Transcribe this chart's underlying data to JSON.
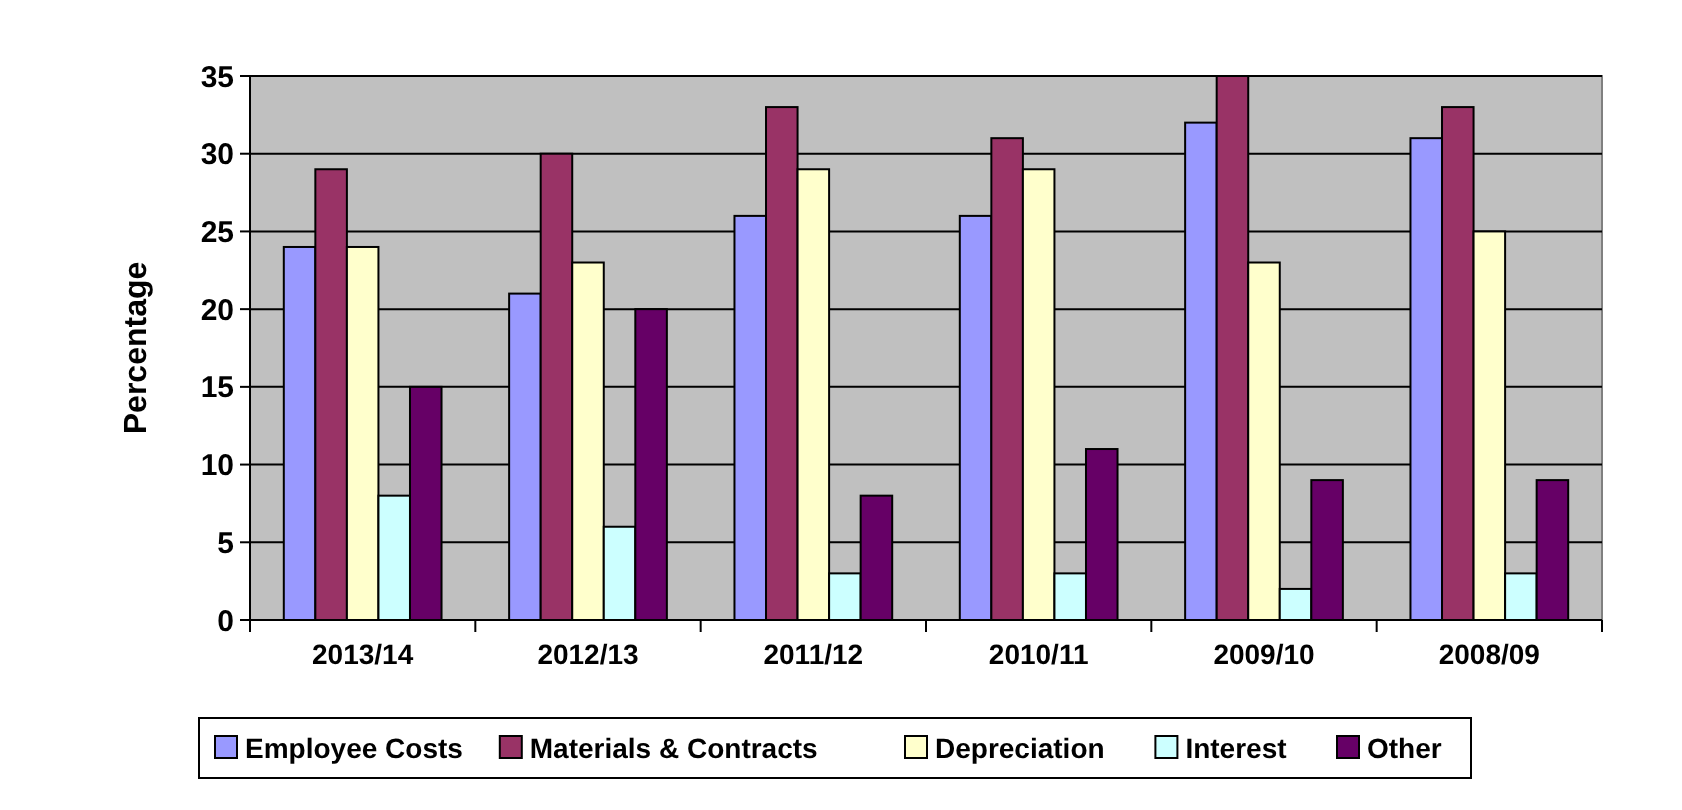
{
  "chart_data": {
    "type": "bar",
    "ylabel": "Percentage",
    "categories": [
      "2013/14",
      "2012/13",
      "2011/12",
      "2010/11",
      "2009/10",
      "2008/09"
    ],
    "series": [
      {
        "name": "Employee Costs",
        "color": "#9999ff",
        "values": [
          24,
          21,
          26,
          26,
          32,
          31
        ]
      },
      {
        "name": "Materials & Contracts",
        "color": "#993366",
        "values": [
          29,
          30,
          33,
          31,
          35,
          33
        ]
      },
      {
        "name": "Depreciation",
        "color": "#ffffcc",
        "values": [
          24,
          23,
          29,
          29,
          23,
          25
        ]
      },
      {
        "name": "Interest",
        "color": "#ccffff",
        "values": [
          8,
          6,
          3,
          3,
          2,
          3
        ]
      },
      {
        "name": "Other",
        "color": "#660066",
        "values": [
          15,
          20,
          8,
          11,
          9,
          9
        ]
      }
    ],
    "ylim": [
      0,
      35
    ],
    "yticks": [
      0,
      5,
      10,
      15,
      20,
      25,
      30,
      35
    ],
    "grid": "y",
    "legend": "bottom"
  }
}
